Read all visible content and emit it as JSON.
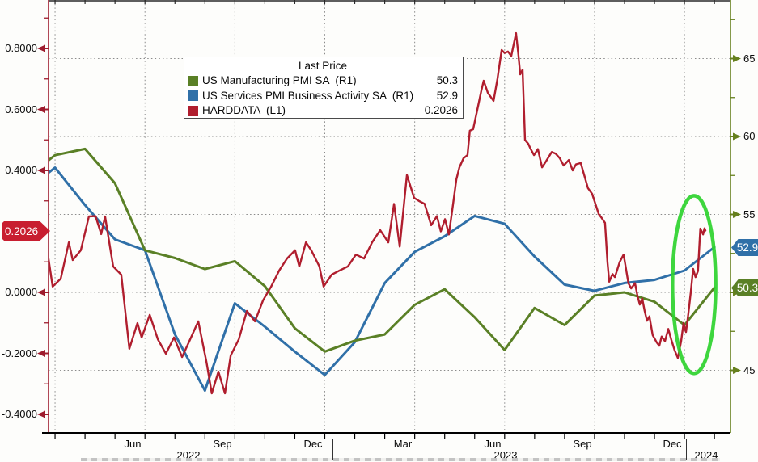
{
  "colors": {
    "manufacturing": "#5A8026",
    "services": "#3070A8",
    "harddata": "#B01E2E",
    "badge_red": "#C81E30",
    "left_axis": "#9E1B2D",
    "right_axis": "#66801E",
    "grid": "#8a8a8a",
    "annotation": "#2ED32E"
  },
  "legend": {
    "title": "Last Price",
    "rows": [
      {
        "label": "US Manufacturing PMI SA  (R1)",
        "value": "50.3",
        "color": "#5A8026"
      },
      {
        "label": "US Services PMI Business Activity SA  (R1)",
        "value": "52.9",
        "color": "#3070A8"
      },
      {
        "label": "HARDDATA  (L1)",
        "value": "0.2026",
        "color": "#B01E2E"
      }
    ]
  },
  "badges": {
    "harddata": {
      "text": "0.2026",
      "value": 0.2026,
      "color": "#C81E30"
    },
    "services": {
      "text": "52.9",
      "value": 52.9,
      "color": "#3070A8"
    },
    "manufacturing": {
      "text": "50.3",
      "value": 50.3,
      "color": "#5A8026"
    }
  },
  "left_axis": {
    "labels": [
      {
        "text": "0.8000",
        "value": 0.8
      },
      {
        "text": "0.6000",
        "value": 0.6
      },
      {
        "text": "0.4000",
        "value": 0.4
      },
      {
        "text": "0.0000",
        "value": 0.0
      },
      {
        "text": "-0.2000",
        "value": -0.2
      },
      {
        "text": "-0.4000",
        "value": -0.4
      }
    ],
    "minor_ticks": [
      0.9,
      0.7,
      0.5,
      0.3,
      0.1,
      -0.1,
      -0.3
    ]
  },
  "right_axis": {
    "labels": [
      {
        "text": "65",
        "value": 65
      },
      {
        "text": "60",
        "value": 60
      },
      {
        "text": "55",
        "value": 55
      },
      {
        "text": "50",
        "value": 50
      },
      {
        "text": "45",
        "value": 45
      }
    ],
    "minor_ticks": [
      67.5,
      62.5,
      57.5,
      52.5,
      47.5
    ]
  },
  "x_axis": {
    "quarter_labels": [
      {
        "label": "Jun",
        "t": 4
      },
      {
        "label": "Sep",
        "t": 7
      },
      {
        "label": "Dec",
        "t": 10
      },
      {
        "label": "Mar",
        "t": 13
      },
      {
        "label": "Jun",
        "t": 16
      },
      {
        "label": "Sep",
        "t": 19
      },
      {
        "label": "Dec",
        "t": 22
      }
    ],
    "year_labels": [
      {
        "label": "2022",
        "t": 5.45
      },
      {
        "label": "2023",
        "t": 16.03
      },
      {
        "label": "2024",
        "t": 22.72
      }
    ],
    "year_separators_t": [
      10.26,
      22.05
    ],
    "gridlines_t": [
      1,
      4,
      7,
      10,
      13,
      16,
      19,
      22
    ],
    "month_ticks_t": [
      0,
      1,
      2,
      3,
      4,
      5,
      6,
      7,
      8,
      9,
      10,
      11,
      12,
      13,
      14,
      15,
      16,
      17,
      18,
      19,
      20,
      21,
      22,
      23
    ]
  },
  "chart_data": {
    "type": "line",
    "title": "Last Price",
    "x_unit": "month",
    "months": [
      "Feb-22",
      "Mar-22",
      "Apr-22",
      "May-22",
      "Jun-22",
      "Jul-22",
      "Aug-22",
      "Sep-22",
      "Oct-22",
      "Nov-22",
      "Dec-22",
      "Jan-23",
      "Feb-23",
      "Mar-23",
      "Apr-23",
      "May-23",
      "Jun-23",
      "Jul-23",
      "Aug-23",
      "Sep-23",
      "Oct-23",
      "Nov-23",
      "Dec-23",
      "Jan-24"
    ],
    "left_axis_range": [
      -0.46,
      0.96
    ],
    "right_axis_range": [
      41.0,
      68.8
    ],
    "grid": "dotted",
    "legend_position": "top-center",
    "series": [
      {
        "name": "US Manufacturing PMI SA",
        "axis": "R1",
        "color": "#5A8026",
        "last_price": 50.3,
        "values": [
          57.3,
          58.8,
          59.2,
          57.0,
          52.7,
          52.2,
          51.5,
          52.0,
          50.4,
          47.7,
          46.2,
          46.9,
          47.3,
          49.2,
          50.2,
          48.4,
          46.3,
          49.0,
          47.9,
          49.8,
          50.0,
          49.4,
          47.9,
          50.3
        ]
      },
      {
        "name": "US Services PMI Business Activity SA",
        "axis": "R1",
        "color": "#3070A8",
        "last_price": 52.9,
        "values": [
          56.5,
          58.0,
          55.6,
          53.4,
          52.7,
          47.3,
          43.7,
          49.3,
          47.8,
          46.2,
          44.7,
          46.8,
          50.6,
          52.6,
          53.6,
          54.9,
          54.4,
          52.3,
          50.5,
          50.1,
          50.6,
          50.8,
          51.4,
          52.9
        ]
      },
      {
        "name": "HARDDATA",
        "axis": "L1",
        "color": "#B01E2E",
        "last_price": 0.2026,
        "points": [
          [
            0.78,
            0.111
          ],
          [
            0.92,
            0.019
          ],
          [
            1.19,
            0.045
          ],
          [
            1.46,
            0.164
          ],
          [
            1.59,
            0.106
          ],
          [
            1.86,
            0.138
          ],
          [
            2.13,
            0.249
          ],
          [
            2.35,
            0.25
          ],
          [
            2.54,
            0.191
          ],
          [
            2.67,
            0.249
          ],
          [
            2.94,
            0.085
          ],
          [
            3.21,
            0.058
          ],
          [
            3.48,
            -0.185
          ],
          [
            3.75,
            -0.101
          ],
          [
            3.89,
            -0.148
          ],
          [
            4.16,
            -0.074
          ],
          [
            4.43,
            -0.154
          ],
          [
            4.7,
            -0.201
          ],
          [
            4.97,
            -0.148
          ],
          [
            5.24,
            -0.212
          ],
          [
            5.51,
            -0.154
          ],
          [
            5.78,
            -0.095
          ],
          [
            6.05,
            -0.228
          ],
          [
            6.23,
            -0.331
          ],
          [
            6.45,
            -0.26
          ],
          [
            6.67,
            -0.331
          ],
          [
            6.86,
            -0.207
          ],
          [
            7.13,
            -0.154
          ],
          [
            7.4,
            -0.061
          ],
          [
            7.67,
            -0.095
          ],
          [
            7.94,
            -0.026
          ],
          [
            8.21,
            0.019
          ],
          [
            8.48,
            0.072
          ],
          [
            8.74,
            0.111
          ],
          [
            9.01,
            0.138
          ],
          [
            9.15,
            0.085
          ],
          [
            9.37,
            0.164
          ],
          [
            9.55,
            0.138
          ],
          [
            9.82,
            0.085
          ],
          [
            9.96,
            0.019
          ],
          [
            10.23,
            0.058
          ],
          [
            10.5,
            0.072
          ],
          [
            10.77,
            0.085
          ],
          [
            11.04,
            0.124
          ],
          [
            11.31,
            0.111
          ],
          [
            11.58,
            0.164
          ],
          [
            11.85,
            0.204
          ],
          [
            12.12,
            0.164
          ],
          [
            12.31,
            0.29
          ],
          [
            12.5,
            0.15
          ],
          [
            12.74,
            0.385
          ],
          [
            12.98,
            0.31
          ],
          [
            13.14,
            0.3
          ],
          [
            13.33,
            0.29
          ],
          [
            13.55,
            0.22
          ],
          [
            13.74,
            0.25
          ],
          [
            13.87,
            0.2
          ],
          [
            14.01,
            0.24
          ],
          [
            14.14,
            0.19
          ],
          [
            14.28,
            0.29
          ],
          [
            14.39,
            0.37
          ],
          [
            14.49,
            0.41
          ],
          [
            14.63,
            0.44
          ],
          [
            14.76,
            0.45
          ],
          [
            14.84,
            0.53
          ],
          [
            14.95,
            0.535
          ],
          [
            15.09,
            0.6
          ],
          [
            15.22,
            0.66
          ],
          [
            15.3,
            0.694
          ],
          [
            15.44,
            0.654
          ],
          [
            15.63,
            0.628
          ],
          [
            15.76,
            0.7
          ],
          [
            15.9,
            0.795
          ],
          [
            16.0,
            0.785
          ],
          [
            16.11,
            0.79
          ],
          [
            16.22,
            0.775
          ],
          [
            16.38,
            0.85
          ],
          [
            16.46,
            0.78
          ],
          [
            16.52,
            0.715
          ],
          [
            16.6,
            0.73
          ],
          [
            16.68,
            0.5
          ],
          [
            16.79,
            0.487
          ],
          [
            16.87,
            0.47
          ],
          [
            16.98,
            0.45
          ],
          [
            17.11,
            0.47
          ],
          [
            17.25,
            0.41
          ],
          [
            17.35,
            0.425
          ],
          [
            17.57,
            0.46
          ],
          [
            17.7,
            0.455
          ],
          [
            17.84,
            0.44
          ],
          [
            17.97,
            0.416
          ],
          [
            18.14,
            0.434
          ],
          [
            18.27,
            0.4
          ],
          [
            18.38,
            0.42
          ],
          [
            18.54,
            0.424
          ],
          [
            18.78,
            0.342
          ],
          [
            18.92,
            0.323
          ],
          [
            19.14,
            0.257
          ],
          [
            19.24,
            0.244
          ],
          [
            19.35,
            0.228
          ],
          [
            19.43,
            0.1
          ],
          [
            19.49,
            0.035
          ],
          [
            19.6,
            0.06
          ],
          [
            19.68,
            0.05
          ],
          [
            19.84,
            0.1
          ],
          [
            19.97,
            0.124
          ],
          [
            20.13,
            0.03
          ],
          [
            20.22,
            0.013
          ],
          [
            20.35,
            0.03
          ],
          [
            20.43,
            -0.01
          ],
          [
            20.51,
            -0.04
          ],
          [
            20.59,
            -0.02
          ],
          [
            20.67,
            -0.06
          ],
          [
            20.75,
            -0.093
          ],
          [
            20.83,
            -0.079
          ],
          [
            20.94,
            -0.14
          ],
          [
            21.08,
            -0.165
          ],
          [
            21.16,
            -0.175
          ],
          [
            21.24,
            -0.145
          ],
          [
            21.35,
            -0.16
          ],
          [
            21.46,
            -0.12
          ],
          [
            21.56,
            -0.155
          ],
          [
            21.67,
            -0.19
          ],
          [
            21.78,
            -0.215
          ],
          [
            21.89,
            -0.16
          ],
          [
            21.97,
            -0.1
          ],
          [
            22.05,
            -0.13
          ],
          [
            22.13,
            -0.07
          ],
          [
            22.21,
            0.0
          ],
          [
            22.29,
            0.077
          ],
          [
            22.37,
            0.05
          ],
          [
            22.45,
            0.07
          ],
          [
            22.53,
            0.209
          ],
          [
            22.62,
            0.19
          ],
          [
            22.67,
            0.21
          ],
          [
            22.7,
            0.2026
          ]
        ]
      }
    ],
    "annotation_ellipse": {
      "center_t": 22.32,
      "center_value_right": 50.5,
      "rx_months": 0.72,
      "ry_units": 5.7,
      "color": "#2ED32E"
    }
  }
}
